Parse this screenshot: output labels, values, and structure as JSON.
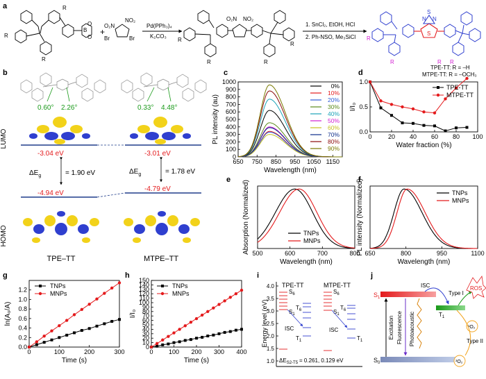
{
  "panel_labels": {
    "a": "a",
    "b": "b",
    "c": "c",
    "d": "d",
    "e": "e",
    "f": "f",
    "g": "g",
    "h": "h",
    "i": "i",
    "j": "j"
  },
  "scheme": {
    "reagent_br": "Br",
    "reagent_no2_left": "O₂N",
    "reagent_no2_right": "NO₂",
    "reagent_br_right": "Br",
    "plus": "+",
    "step1_top": "Pd(PPh₃)₄",
    "step1_bottom": "K₂CO₃",
    "step2_line1": "1. SnCl₂, EtOH, HCl",
    "step2_line2": "2. Ph-NSO, Me₃SiCl",
    "sub_R": "R",
    "prod_N": "N",
    "prod_S": "S",
    "legend1": "TPE-TT: R = –H",
    "legend2": "MTPE-TT: R = –OCH₃",
    "boron": "B",
    "oxy": "O"
  },
  "panel_b": {
    "angle_tpe_1": "0.60°",
    "angle_tpe_2": "2.26°",
    "angle_mtpe_1": "0.33°",
    "angle_mtpe_2": "4.48°",
    "lumo": "LUMO",
    "homo": "HOMO",
    "lumo_tpe": "-3.04 eV",
    "lumo_mtpe": "-3.01 eV",
    "homo_tpe": "-4.94 eV",
    "homo_mtpe": "-4.79 eV",
    "gap_label": "ΔE",
    "gap_sub": "g",
    "gap_tpe": "= 1.90 eV",
    "gap_mtpe": "= 1.78 eV",
    "name_tpe": "TPE–TT",
    "name_mtpe": "MTPE–TT"
  },
  "chart_data": [
    {
      "id": "c",
      "type": "line",
      "xlabel": "Wavelength (nm)",
      "ylabel": "PL intensity (au)",
      "xlim": [
        650,
        1200
      ],
      "ylim": [
        0,
        1000
      ],
      "xticks": [
        "650",
        "750",
        "850",
        "950",
        "1050",
        "1150"
      ],
      "yticks": [
        "0",
        "100",
        "200",
        "300",
        "400",
        "500",
        "600",
        "700",
        "800",
        "900",
        "1000"
      ],
      "peak_nm": 815,
      "series": [
        {
          "name": "0%",
          "color": "#000000",
          "peak": 620
        },
        {
          "name": "10%",
          "color": "#e41a1c",
          "peak": 340
        },
        {
          "name": "20%",
          "color": "#2f5cd6",
          "peak": 330
        },
        {
          "name": "30%",
          "color": "#5a8a1a",
          "peak": 455
        },
        {
          "name": "40%",
          "color": "#1aa3b8",
          "peak": 770
        },
        {
          "name": "50%",
          "color": "#d21fd2",
          "peak": 400
        },
        {
          "name": "60%",
          "color": "#c8c020",
          "peak": 300
        },
        {
          "name": "70%",
          "color": "#0b2c8a",
          "peak": 390
        },
        {
          "name": "80%",
          "color": "#8a0a0a",
          "peak": 880
        },
        {
          "name": "90%",
          "color": "#7a7a00",
          "peak": 960
        }
      ]
    },
    {
      "id": "d",
      "type": "line",
      "xlabel": "Water fraction (%)",
      "ylabel": "I/I₀",
      "xlim": [
        0,
        100
      ],
      "ylim": [
        0,
        1.0
      ],
      "xticks": [
        "0",
        "20",
        "40",
        "60",
        "80",
        "100"
      ],
      "yticks": [
        "0.0",
        "0.5",
        "1.0"
      ],
      "x": [
        0,
        10,
        20,
        30,
        40,
        50,
        60,
        70,
        80,
        90
      ],
      "series": [
        {
          "name": "TPE-TT",
          "color": "#000000",
          "values": [
            1.0,
            0.48,
            0.33,
            0.18,
            0.17,
            0.13,
            0.12,
            0.02,
            0.08,
            0.09
          ]
        },
        {
          "name": "MTPE-TT",
          "color": "#e41a1c",
          "values": [
            1.0,
            0.62,
            0.55,
            0.5,
            0.46,
            0.4,
            0.38,
            0.66,
            0.88,
            1.07
          ]
        }
      ]
    },
    {
      "id": "e",
      "type": "line",
      "xlabel": "Wavelength (nm)",
      "ylabel": "Absorption (Normalized)",
      "xlim": [
        500,
        800
      ],
      "ylim": [
        0,
        1.05
      ],
      "xticks": [
        "500",
        "600",
        "700",
        "800"
      ],
      "series": [
        {
          "name": "TNPs",
          "color": "#000000",
          "peak": 615
        },
        {
          "name": "MNPs",
          "color": "#e41a1c",
          "peak": 628
        }
      ]
    },
    {
      "id": "f",
      "type": "line",
      "xlabel": "Wavelength (nm)",
      "ylabel": "PL intensity (Normalized)",
      "xlim": [
        650,
        1100
      ],
      "ylim": [
        0,
        1.05
      ],
      "xticks": [
        "650",
        "800",
        "950",
        "1100"
      ],
      "series": [
        {
          "name": "TNPs",
          "color": "#000000",
          "peak": 792
        },
        {
          "name": "MNPs",
          "color": "#e41a1c",
          "peak": 805
        }
      ]
    },
    {
      "id": "g",
      "type": "scatter",
      "xlabel": "Time (s)",
      "ylabel": "ln(A₀/A)",
      "xlim": [
        0,
        300
      ],
      "ylim": [
        0,
        1.4
      ],
      "xticks": [
        "0",
        "100",
        "200",
        "300"
      ],
      "yticks": [
        "0.0",
        "0.2",
        "0.4",
        "0.6",
        "0.8",
        "1.0",
        "1.2"
      ],
      "x": [
        0,
        25,
        50,
        75,
        100,
        125,
        150,
        175,
        200,
        225,
        250,
        275,
        300
      ],
      "series": [
        {
          "name": "TNPs",
          "color": "#000000",
          "marker": "square",
          "values": [
            0.0,
            0.05,
            0.1,
            0.15,
            0.2,
            0.25,
            0.3,
            0.35,
            0.39,
            0.44,
            0.49,
            0.54,
            0.58
          ]
        },
        {
          "name": "MNPs",
          "color": "#e41a1c",
          "marker": "circle",
          "values": [
            0.0,
            0.11,
            0.23,
            0.34,
            0.45,
            0.56,
            0.68,
            0.79,
            0.9,
            1.01,
            1.13,
            1.24,
            1.35
          ]
        }
      ]
    },
    {
      "id": "h",
      "type": "scatter",
      "xlabel": "Time (s)",
      "ylabel": "I/I₀",
      "xlim": [
        0,
        400
      ],
      "ylim": [
        0,
        150
      ],
      "xticks": [
        "0",
        "100",
        "200",
        "300",
        "400"
      ],
      "yticks": [
        "0",
        "10",
        "20",
        "30",
        "40",
        "50",
        "60",
        "70",
        "80",
        "90",
        "100",
        "110",
        "120",
        "130",
        "140",
        "150"
      ],
      "x": [
        0,
        25,
        50,
        75,
        100,
        125,
        150,
        175,
        200,
        225,
        250,
        275,
        300,
        325,
        350,
        375,
        400
      ],
      "series": [
        {
          "name": "TNPs",
          "color": "#000000",
          "marker": "square",
          "values": [
            0,
            2,
            5,
            7,
            10,
            12,
            15,
            17,
            20,
            22,
            25,
            27,
            30,
            33,
            35,
            38,
            40
          ]
        },
        {
          "name": "MNPs",
          "color": "#e41a1c",
          "marker": "circle",
          "values": [
            0,
            8,
            16,
            24,
            32,
            40,
            48,
            56,
            64,
            72,
            80,
            88,
            96,
            104,
            112,
            120,
            128
          ]
        }
      ]
    }
  ],
  "panel_i": {
    "title_tpe": "TPE-TT",
    "title_mtpe": "MTPE-TT",
    "ylabel": "Energy level (eV)",
    "yticks": [
      "1.0",
      "1.5",
      "2.0",
      "2.5",
      "3.0",
      "3.5",
      "4.0"
    ],
    "s6": "S",
    "s6_sub": "6",
    "s1": "S",
    "s1_sub": "1",
    "t6": "T",
    "t6_sub": "6",
    "t1": "T",
    "t1_sub": "1",
    "isc": "ISC",
    "delta": "ΔE",
    "delta_sub": "S2-T5",
    "delta_val": "= 0.261, 0.129 eV"
  },
  "panel_j": {
    "s1": "S",
    "s1_sub": "1",
    "s0": "S",
    "s0_sub": "0",
    "t1": "T",
    "t1_sub": "1",
    "isc": "ISC",
    "type1": "Type I",
    "type2": "Type II",
    "ros": "ROS",
    "o2_singlet": "¹O₂",
    "o2_triplet": "³O₂",
    "excitation": "Excitation",
    "fluorescence": "Fluorescence",
    "photoacoustic": "Photoacoustic"
  },
  "colors": {
    "red": "#e41a1c",
    "blue": "#2f3fcf",
    "green": "#1a9a1a",
    "purple": "#6a2cc8",
    "mag": "#d21fd2",
    "yellow": "#f2d21a",
    "navy": "#1f3c8a"
  }
}
